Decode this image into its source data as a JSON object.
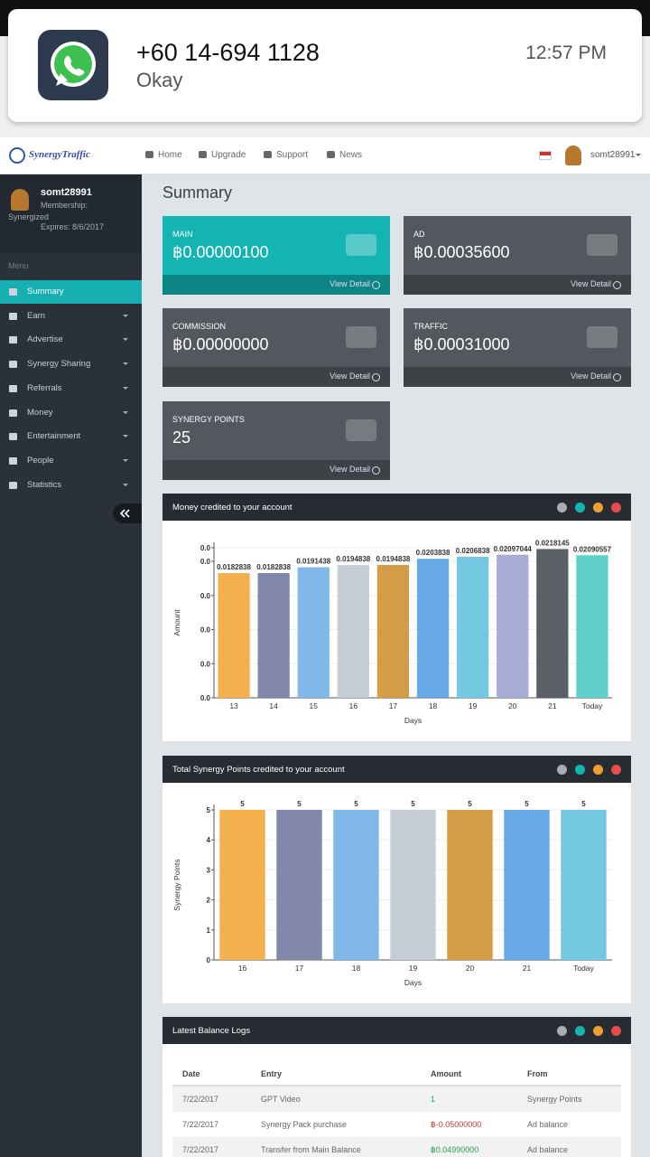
{
  "notification": {
    "title": "+60 14-694 1128",
    "message": "Okay",
    "time": "12:57 PM"
  },
  "navbar": {
    "brand": "SynergyTraffic",
    "links": [
      "Home",
      "Upgrade",
      "Support",
      "News"
    ],
    "user": "somt28991"
  },
  "sidebar": {
    "user": "somt28991",
    "membership": "Membership:",
    "level": "Synergized",
    "expires": "Expires: 8/6/2017",
    "menu_label": "Menu",
    "items": [
      "Summary",
      "Earn",
      "Advertise",
      "Synergy Sharing",
      "Referrals",
      "Money",
      "Entertainment",
      "People",
      "Statistics"
    ]
  },
  "page_title": "Summary",
  "cards": [
    {
      "label": "MAIN",
      "value": "฿0.00000100",
      "link": "View Detail"
    },
    {
      "label": "AD",
      "value": "฿0.00035600",
      "link": "View Detail"
    },
    {
      "label": "COMMISSION",
      "value": "฿0.00000000",
      "link": "View Detail"
    },
    {
      "label": "TRAFFIC",
      "value": "฿0.00031000",
      "link": "View Detail"
    },
    {
      "label": "SYNERGY POINTS",
      "value": "25",
      "link": "View Detail"
    }
  ],
  "chart_data": [
    {
      "type": "bar",
      "title": "Money credited to your account",
      "x_label": "Days",
      "y_label": "Amount",
      "categories": [
        "13",
        "14",
        "15",
        "16",
        "17",
        "18",
        "19",
        "20",
        "21",
        "Today"
      ],
      "values": [
        0.0182838,
        0.0182838,
        0.0191438,
        0.0194838,
        0.0194838,
        0.0203838,
        0.0206838,
        0.02097044,
        0.0218145,
        0.02090557
      ],
      "colors": [
        "#f5b04e",
        "#8188a9",
        "#80b8ea",
        "#c6cdd4",
        "#d49c47",
        "#67a9e7",
        "#74c8e2",
        "#a8acd5",
        "#5c6066",
        "#5fd0cc"
      ],
      "ylim": [
        0,
        0.022
      ],
      "yticks": [
        {
          "value": 0,
          "label": "0.0"
        },
        {
          "value": 0.005,
          "label": "0.0"
        },
        {
          "value": 0.01,
          "label": "0.0"
        },
        {
          "value": 0.015,
          "label": "0.0"
        },
        {
          "value": 0.02,
          "label": "0.0"
        },
        {
          "value": 0.022,
          "label": "0.0"
        }
      ],
      "grid": true
    },
    {
      "type": "bar",
      "title": "Total Synergy Points credited to your account",
      "x_label": "Days",
      "y_label": "Synergy Points",
      "categories": [
        "16",
        "17",
        "18",
        "19",
        "20",
        "21",
        "Today"
      ],
      "values": [
        5,
        5,
        5,
        5,
        5,
        5,
        5
      ],
      "colors": [
        "#f5b04e",
        "#8188a9",
        "#80b8ea",
        "#c6cdd4",
        "#d49c47",
        "#67a9e7",
        "#74c8e2"
      ],
      "ylim": [
        0,
        5
      ],
      "yticks": [
        0,
        1,
        2,
        3,
        4,
        5
      ],
      "grid": true
    }
  ],
  "table": {
    "title": "Latest Balance Logs",
    "columns": [
      "Date",
      "Entry",
      "Amount",
      "From"
    ],
    "rows": [
      [
        "7/22/2017",
        "GPT Video",
        "1",
        "Synergy Points"
      ],
      [
        "7/22/2017",
        "Synergy Pack purchase",
        "฿-0.05000000",
        "Ad balance"
      ],
      [
        "7/22/2017",
        "Transfer from Main Balance",
        "฿0.04990000",
        "Ad balance"
      ]
    ]
  }
}
